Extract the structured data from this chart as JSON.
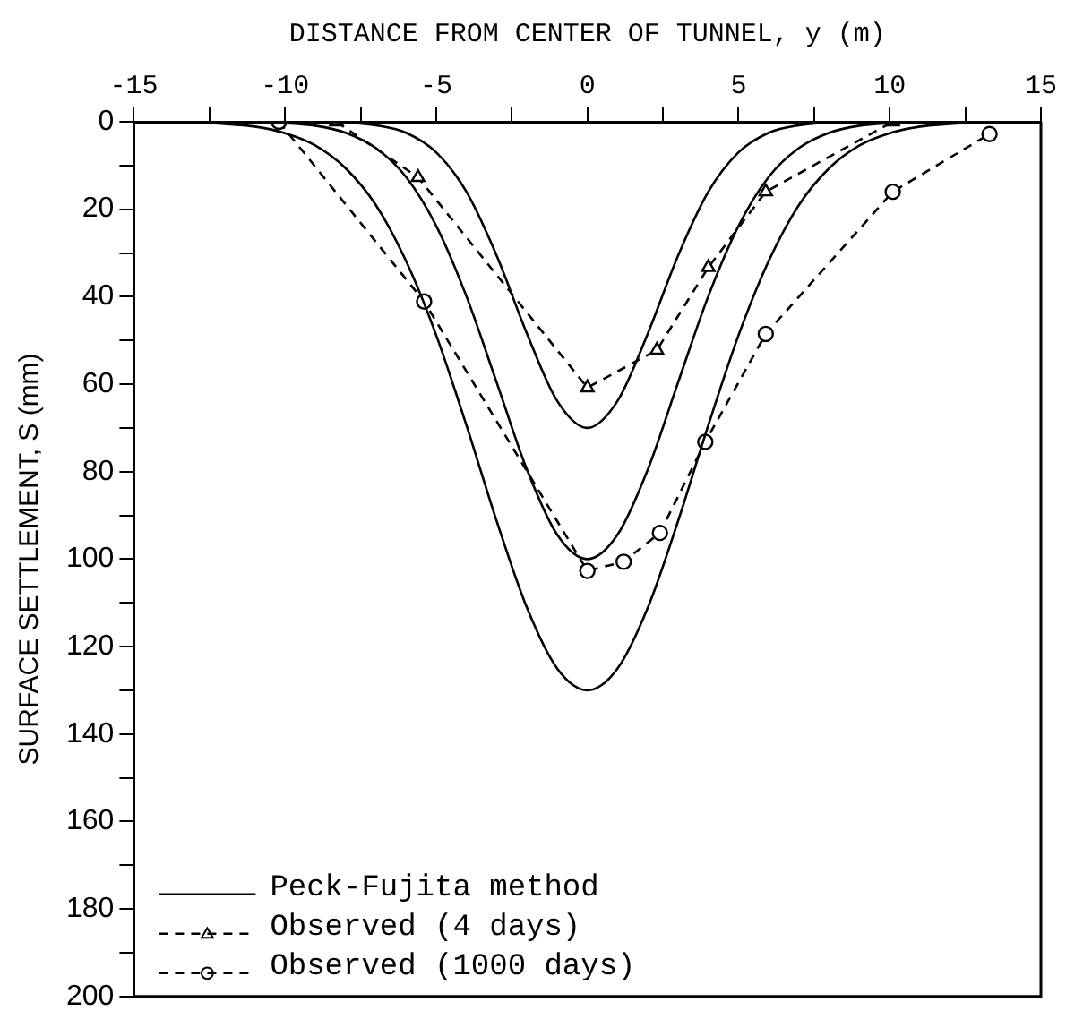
{
  "chart_data": {
    "type": "line",
    "xlabel": "DISTANCE FROM CENTER OF TUNNEL, y (m)",
    "ylabel": "SURFACE SETTLEMENT, S (mm)",
    "xlim": [
      -15,
      15
    ],
    "xticks": [
      -15,
      {
        "value": -12.5,
        "label": null
      },
      -10,
      {
        "value": -7.5,
        "label": null
      },
      -5,
      {
        "value": -2.5,
        "label": null
      },
      0,
      {
        "value": 2.5,
        "label": null
      },
      5,
      {
        "value": 7.5,
        "label": null
      },
      10,
      {
        "value": 12.5,
        "label": null
      },
      15
    ],
    "ylim": [
      200,
      0
    ],
    "yticks": [
      0,
      {
        "value": 10,
        "label": null
      },
      20,
      {
        "value": 30,
        "label": null
      },
      40,
      {
        "value": 50,
        "label": null
      },
      60,
      {
        "value": 70,
        "label": null
      },
      80,
      {
        "value": 90,
        "label": null
      },
      100,
      {
        "value": 110,
        "label": null
      },
      120,
      {
        "value": 130,
        "label": null
      },
      140,
      {
        "value": 150,
        "label": null
      },
      160,
      {
        "value": 170,
        "label": null
      },
      180,
      {
        "value": 190,
        "label": null
      },
      200
    ],
    "grid": false,
    "legend": "bottom left",
    "series": [
      {
        "name": "Peck-Fujita method",
        "type": "line",
        "color": "#000000",
        "marker": "none",
        "line_style": "solid",
        "x": [
          -9,
          -8,
          -7,
          -6,
          -5,
          -4,
          -3,
          -2,
          -1,
          0,
          1,
          2,
          3,
          4,
          5,
          6,
          7,
          8,
          9
        ],
        "values": [
          0,
          0.2,
          0.8,
          2.5,
          7.0,
          16.0,
          30.6,
          48.4,
          63.8,
          70,
          63.8,
          48.4,
          30.6,
          16.0,
          7.0,
          2.5,
          0.8,
          0.2,
          0
        ]
      },
      {
        "type": "line",
        "color": "#000000",
        "marker": "none",
        "line_style": "solid",
        "x": [
          -11,
          -10,
          -9,
          -8,
          -7,
          -6,
          -5,
          -4,
          -3,
          -2,
          -1,
          0,
          1,
          2,
          3,
          4,
          5,
          6,
          7,
          8,
          9,
          10,
          11
        ],
        "values": [
          0,
          0.3,
          0.9,
          2.5,
          6.0,
          12.6,
          23.8,
          39.9,
          59.6,
          79.5,
          94.4,
          100,
          94.4,
          79.5,
          59.6,
          39.9,
          23.8,
          12.6,
          6.0,
          2.5,
          0.9,
          0.3,
          0
        ]
      },
      {
        "type": "line",
        "color": "#000000",
        "marker": "none",
        "line_style": "solid",
        "x": [
          -13,
          -12,
          -11,
          -10,
          -9,
          -8,
          -7,
          -6,
          -5,
          -4,
          -3,
          -2,
          -1,
          0,
          1,
          2,
          3,
          4,
          5,
          6,
          7,
          8,
          9,
          10,
          11,
          12,
          13
        ],
        "values": [
          0,
          0.5,
          1.1,
          2.6,
          5.4,
          10.6,
          19.0,
          31.8,
          48.8,
          69.4,
          91.3,
          111.1,
          125.0,
          130,
          125.0,
          111.1,
          91.3,
          69.4,
          48.8,
          31.8,
          19.0,
          10.6,
          5.4,
          2.6,
          1.1,
          0.5,
          0
        ]
      },
      {
        "name": "Observed (4 days)",
        "type": "line",
        "color": "#000000",
        "marker": "triangle",
        "line_style": "dashed",
        "x": [
          -8.3,
          -5.6,
          0,
          2.3,
          4.0,
          5.9,
          10.1
        ],
        "values": [
          0,
          12.7,
          60.8,
          52.2,
          33.3,
          16,
          0
        ]
      },
      {
        "name": "Observed (1000 days)",
        "type": "line",
        "color": "#000000",
        "marker": "circle",
        "line_style": "dashed",
        "x": [
          -10.2,
          -5.4,
          0,
          1.2,
          2.4,
          3.9,
          5.9,
          10.1,
          13.3
        ],
        "values": [
          0,
          41.1,
          102.7,
          100.6,
          94,
          73.2,
          48.5,
          16,
          2.8
        ]
      }
    ]
  }
}
